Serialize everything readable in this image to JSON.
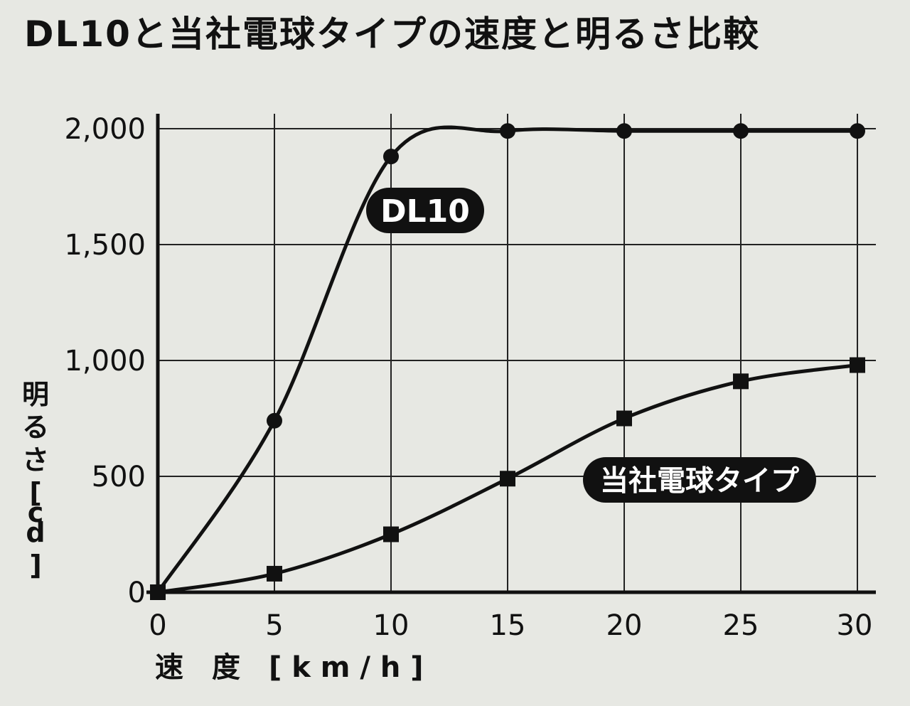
{
  "chart_data": {
    "type": "line",
    "title": "DL10と当社電球タイプの速度と明るさ比較",
    "xlabel": "速　度　[ k m / h ]",
    "ylabel": "明るさ[cd]",
    "xlim": [
      0,
      30
    ],
    "ylim": [
      0,
      2000
    ],
    "x_ticks": [
      "0",
      "5",
      "10",
      "15",
      "20",
      "25",
      "30"
    ],
    "y_ticks": [
      "0",
      "500",
      "1,000",
      "1,500",
      "2,000"
    ],
    "grid": true,
    "legend": "inline labels",
    "series": [
      {
        "name": "DL10",
        "marker": "circle",
        "x": [
          0,
          5,
          10,
          15,
          20,
          25,
          30
        ],
        "y": [
          0,
          740,
          1880,
          1990,
          1990,
          1990,
          1990
        ]
      },
      {
        "name": "当社電球タイプ",
        "marker": "square",
        "x": [
          0,
          5,
          10,
          15,
          20,
          25,
          30
        ],
        "y": [
          0,
          80,
          250,
          490,
          750,
          910,
          980
        ]
      }
    ],
    "colors": {
      "line": "#111111",
      "grid": "#222222",
      "background": "#e7e8e3",
      "tag_fill": "#111111",
      "tag_text": "#ffffff"
    }
  }
}
